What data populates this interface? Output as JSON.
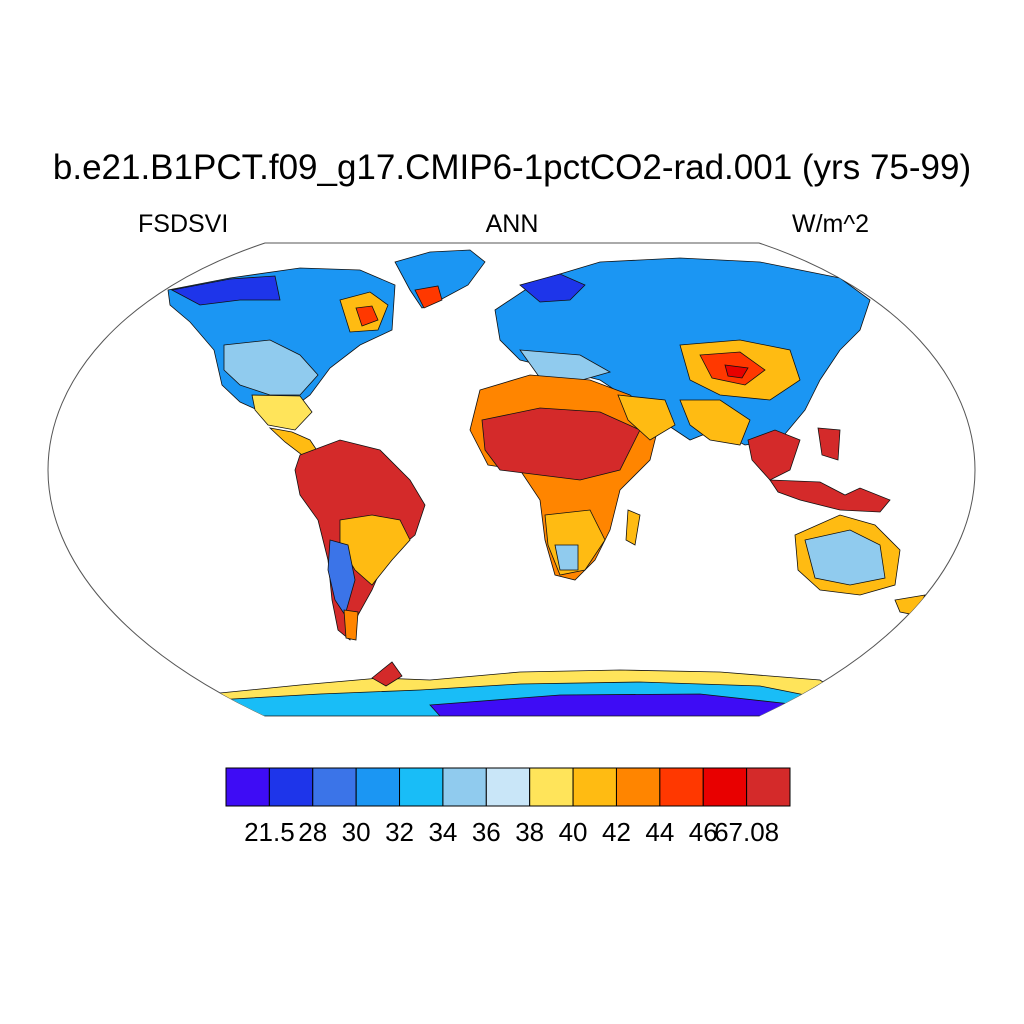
{
  "title": "b.e21.B1PCT.f09_g17.CMIP6-1pctCO2-rad.001 (yrs 75-99)",
  "subtitle_left": "FSDSVI",
  "subtitle_center": "ANN",
  "subtitle_right": "W/m^2",
  "colorbar": {
    "colors": [
      "#3e0cf5",
      "#1e35ea",
      "#3b74e8",
      "#1b96f3",
      "#19bdf7",
      "#90cbee",
      "#c9e6f8",
      "#ffe45a",
      "#ffbb12",
      "#ff8500",
      "#ff3800",
      "#e80000",
      "#d42a2a"
    ],
    "tick_labels": [
      "21.5",
      "28",
      "30",
      "32",
      "34",
      "36",
      "38",
      "40",
      "42",
      "44",
      "46",
      "67.08"
    ]
  },
  "map": {
    "projection": "robinson",
    "ocean_color": "#ffffff",
    "coastline_color": "#000000"
  }
}
